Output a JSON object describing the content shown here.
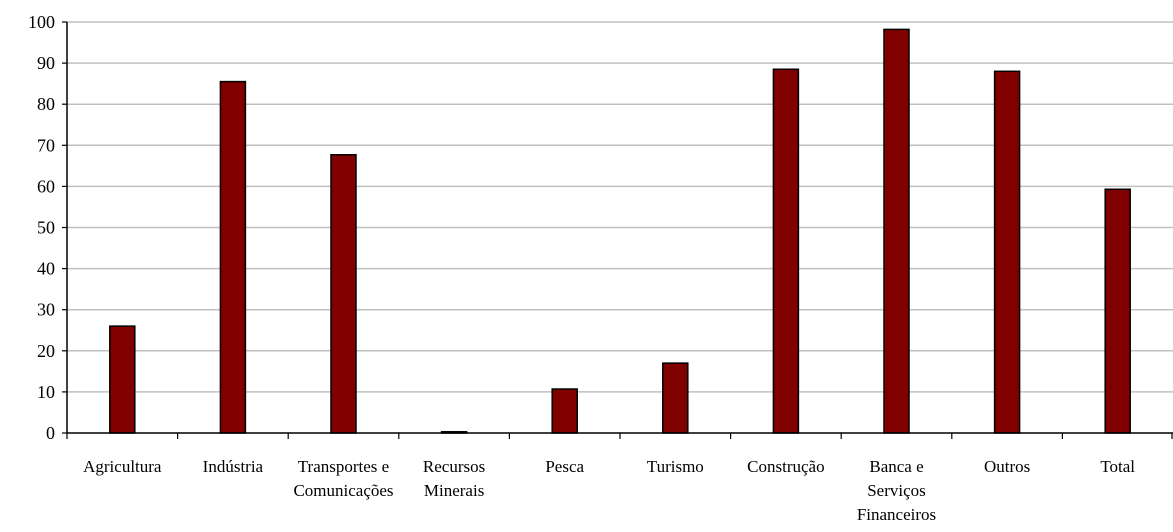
{
  "chart_data": {
    "type": "bar",
    "categories": [
      [
        "Agricultura"
      ],
      [
        "Indústria"
      ],
      [
        "Transportes e",
        "Comunicações"
      ],
      [
        "Recursos",
        "Minerais"
      ],
      [
        "Pesca"
      ],
      [
        "Turismo"
      ],
      [
        "Construção"
      ],
      [
        "Banca e",
        "Serviços",
        "Financeiros"
      ],
      [
        "Outros"
      ],
      [
        "Total"
      ]
    ],
    "values": [
      26,
      85.5,
      67.7,
      0.3,
      10.7,
      17,
      88.5,
      98.2,
      88,
      59.3
    ],
    "ylim": [
      0,
      100
    ],
    "yticks": [
      0,
      10,
      20,
      30,
      40,
      50,
      60,
      70,
      80,
      90,
      100
    ],
    "title": "",
    "xlabel": "",
    "ylabel": "",
    "grid": true,
    "bar_color": "#800000",
    "bar_edge_color": "#000000",
    "grid_color": "#c0c0c0"
  }
}
